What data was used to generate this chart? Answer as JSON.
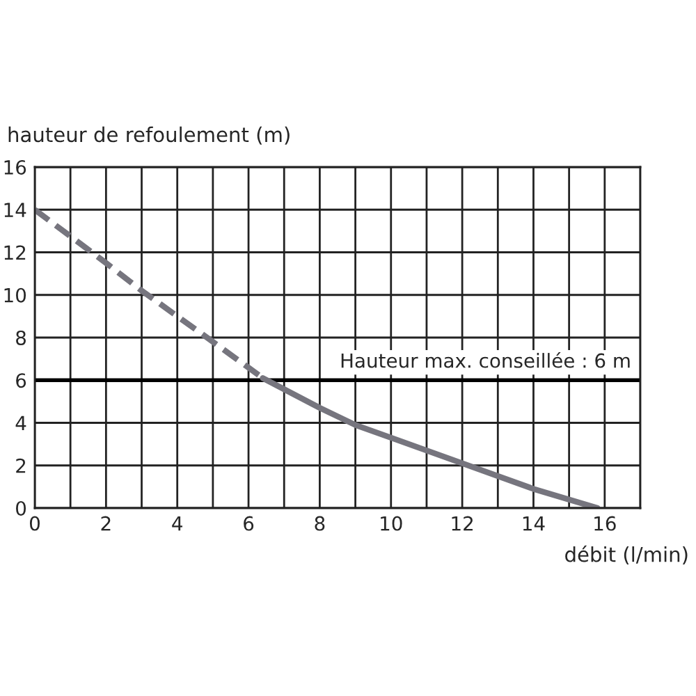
{
  "chart_data": {
    "type": "line",
    "xlabel": "débit (l/min)",
    "ylabel": "hauteur de refoulement (m)",
    "xlim": [
      0,
      17
    ],
    "ylim": [
      0,
      16
    ],
    "xticks": [
      0,
      {
        "value": 1,
        "label": null
      },
      2,
      {
        "value": 3,
        "label": null
      },
      4,
      {
        "value": 5,
        "label": null
      },
      6,
      {
        "value": 7,
        "label": null
      },
      8,
      {
        "value": 9,
        "label": null
      },
      10,
      {
        "value": 11,
        "label": null
      },
      12,
      {
        "value": 13,
        "label": null
      },
      14,
      {
        "value": 15,
        "label": null
      },
      16,
      {
        "value": 17,
        "label": null
      }
    ],
    "yticks": [
      0,
      2,
      4,
      6,
      8,
      10,
      12,
      14,
      16
    ],
    "grid": true,
    "marker": "none",
    "series": [
      {
        "color": "#76757e",
        "line_style": "dashed",
        "x": [
          0,
          2,
          3,
          4,
          5,
          6.4
        ],
        "values": [
          14,
          11.5,
          10.2,
          9,
          7.8,
          6.1
        ]
      },
      {
        "color": "#76757e",
        "line_style": "solid",
        "x": [
          6.4,
          8,
          9,
          10,
          12,
          14,
          15.8
        ],
        "values": [
          6.1,
          4.7,
          3.9,
          3.3,
          2.1,
          0.9,
          0
        ]
      }
    ],
    "ref_lines": [
      {
        "axis": "y",
        "value": 6,
        "label": "Hauteur max. conseillée : 6 m",
        "color": "#000000",
        "line_style": "solid"
      }
    ]
  }
}
